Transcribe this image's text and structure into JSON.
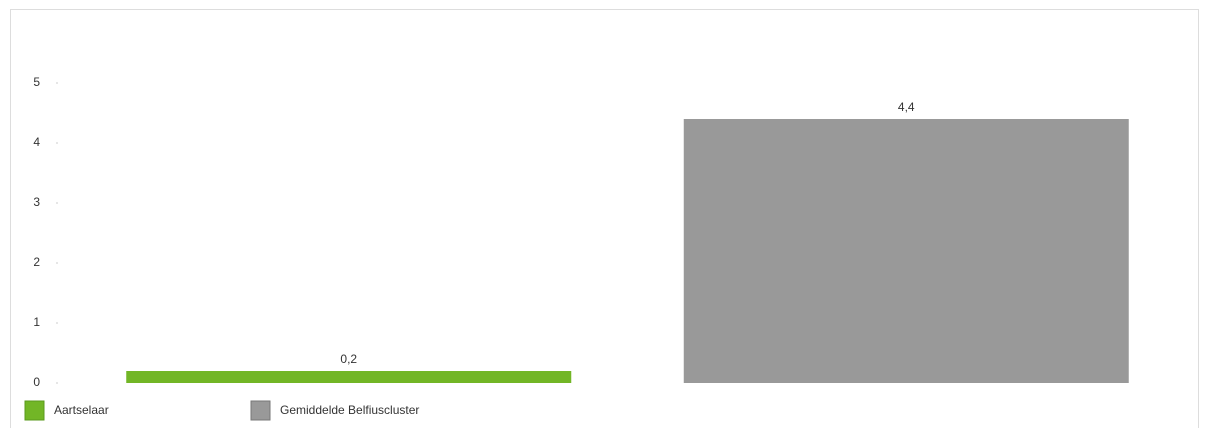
{
  "chart_data": {
    "type": "bar",
    "categories": [
      null
    ],
    "series": [
      {
        "name": "Aartselaar",
        "color": "#72b626",
        "values": [
          0.2
        ],
        "value_labels": [
          "0,2"
        ]
      },
      {
        "name": "Gemiddelde Belfiuscluster",
        "color": "#999999",
        "values": [
          4.4
        ],
        "value_labels": [
          "4,4"
        ]
      }
    ],
    "ylim": [
      0,
      5
    ],
    "yticks": [
      0,
      1,
      2,
      3,
      4,
      5
    ],
    "grid": false,
    "legend": "bottom-left"
  }
}
